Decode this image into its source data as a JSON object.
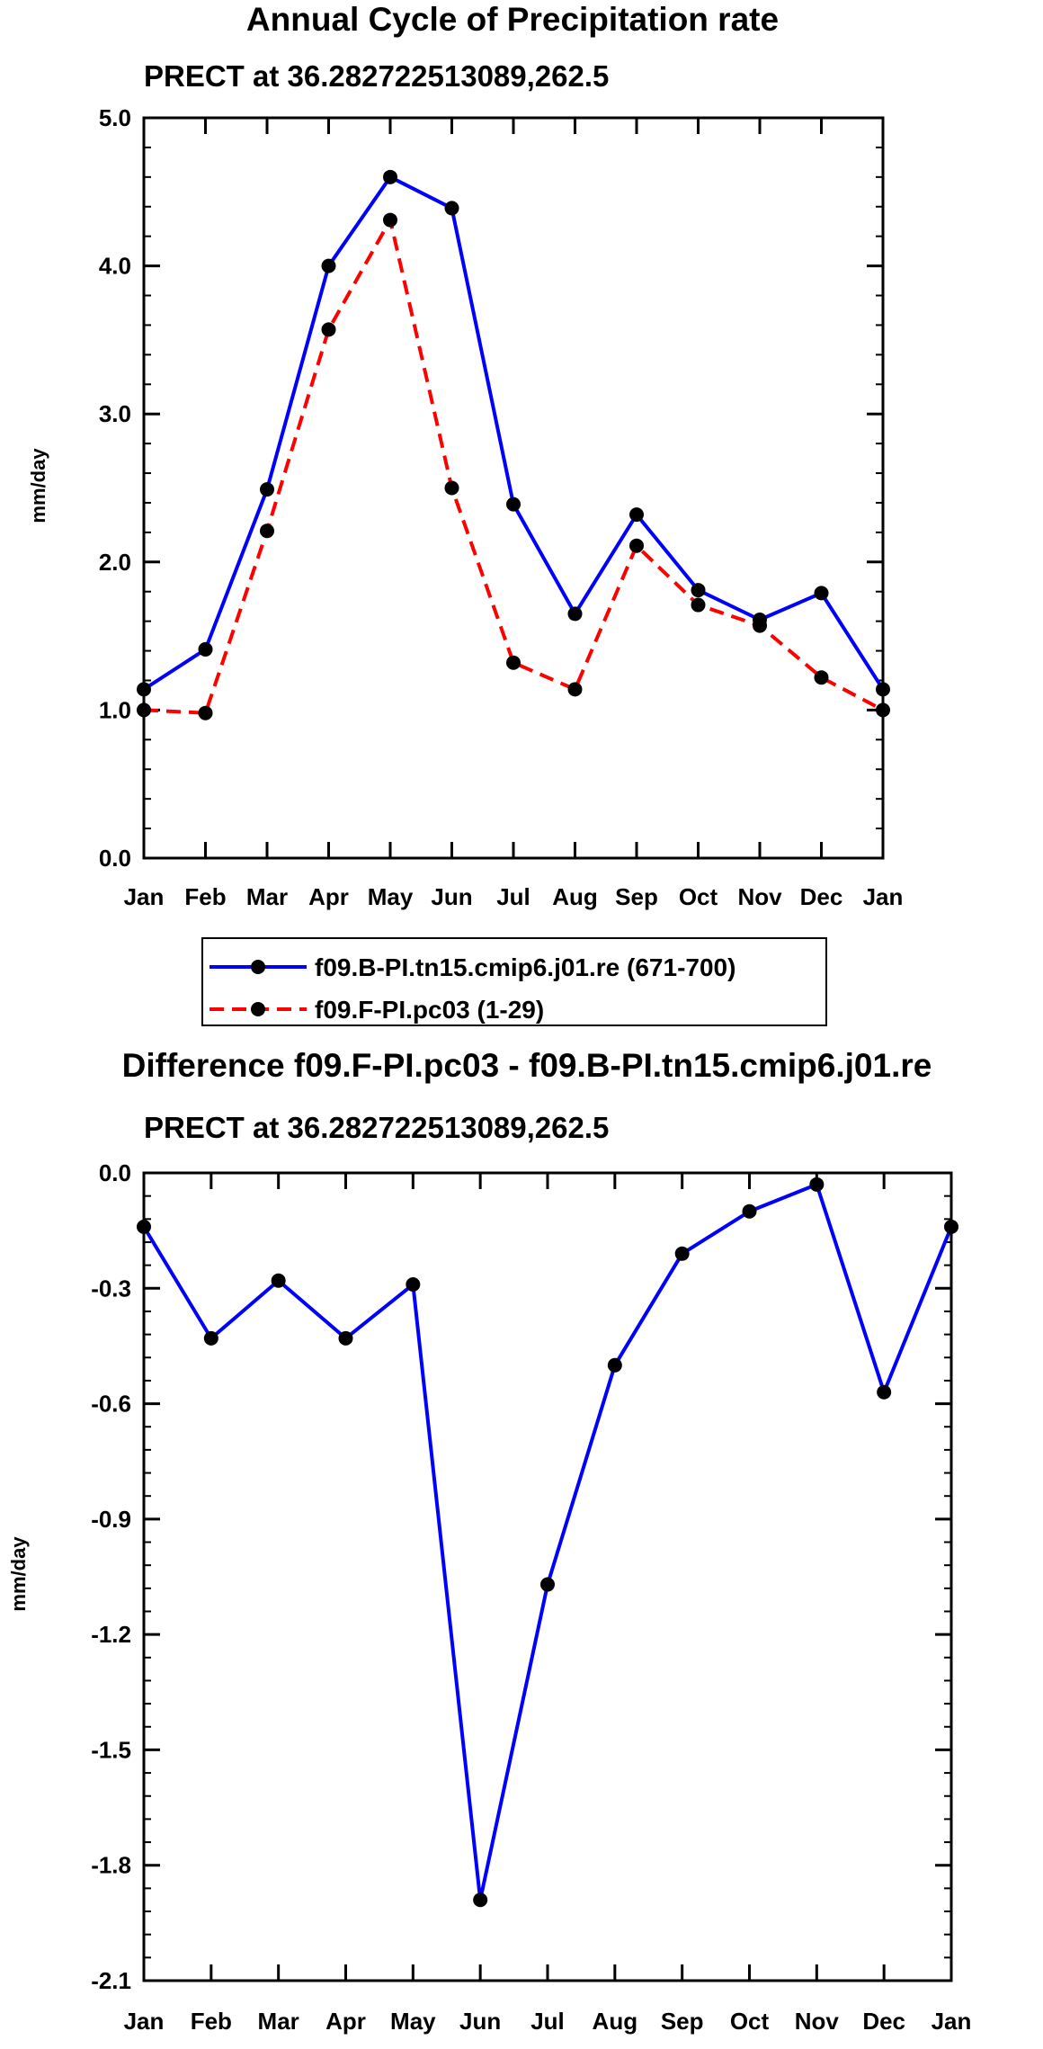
{
  "chart_data": [
    {
      "type": "line",
      "title": "Annual Cycle of Precipitation rate",
      "subtitle": "PRECT at 36.282722513089,262.5",
      "ylabel": "mm/day",
      "xlabel": "",
      "ylim": [
        0.0,
        5.0
      ],
      "yticks": [
        "0.0",
        "1.0",
        "2.0",
        "3.0",
        "4.0",
        "5.0"
      ],
      "ytick_values": [
        0,
        1,
        2,
        3,
        4,
        5
      ],
      "categories": [
        "Jan",
        "Feb",
        "Mar",
        "Apr",
        "May",
        "Jun",
        "Jul",
        "Aug",
        "Sep",
        "Oct",
        "Nov",
        "Dec",
        "Jan"
      ],
      "series": [
        {
          "name": "f09.B-PI.tn15.cmip6.j01.re (671-700)",
          "color": "#0000ff",
          "style": "solid",
          "values": [
            1.14,
            1.41,
            2.49,
            4.0,
            4.6,
            4.39,
            2.39,
            1.65,
            2.32,
            1.81,
            1.61,
            1.79,
            1.14
          ]
        },
        {
          "name": "f09.F-PI.pc03 (1-29)",
          "color": "#ff0000",
          "style": "dashed",
          "values": [
            1.0,
            0.98,
            2.21,
            3.57,
            4.31,
            2.5,
            1.32,
            1.14,
            2.11,
            1.71,
            1.57,
            1.22,
            1.0
          ]
        }
      ],
      "legend": [
        "f09.B-PI.tn15.cmip6.j01.re (671-700)",
        "f09.F-PI.pc03 (1-29)"
      ],
      "legend_position": "bottom"
    },
    {
      "type": "line",
      "title": "Difference f09.F-PI.pc03 - f09.B-PI.tn15.cmip6.j01.re",
      "subtitle": "PRECT at 36.282722513089,262.5",
      "ylabel": "mm/day",
      "xlabel": "",
      "ylim": [
        -2.1,
        0.0
      ],
      "yticks": [
        "0.0",
        "-0.3",
        "-0.6",
        "-0.9",
        "-1.2",
        "-1.5",
        "-1.8",
        "-2.1"
      ],
      "ytick_values": [
        0.0,
        -0.3,
        -0.6,
        -0.9,
        -1.2,
        -1.5,
        -1.8,
        -2.1
      ],
      "categories": [
        "Jan",
        "Feb",
        "Mar",
        "Apr",
        "May",
        "Jun",
        "Jul",
        "Aug",
        "Sep",
        "Oct",
        "Nov",
        "Dec",
        "Jan"
      ],
      "series": [
        {
          "name": "Difference",
          "color": "#0000ff",
          "style": "solid",
          "values": [
            -0.14,
            -0.43,
            -0.28,
            -0.43,
            -0.29,
            -1.89,
            -1.07,
            -0.5,
            -0.21,
            -0.1,
            -0.03,
            -0.57,
            -0.14
          ]
        }
      ]
    }
  ]
}
